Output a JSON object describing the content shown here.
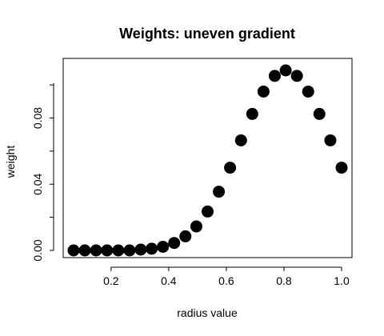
{
  "chart_data": {
    "type": "scatter",
    "title": "Weights: uneven gradient",
    "xlabel": "radius value",
    "ylabel": "weight",
    "xlim": [
      0.07,
      1.0
    ],
    "ylim": [
      0,
      0.1088
    ],
    "xticks": [
      0.2,
      0.4,
      0.6,
      0.8,
      1.0
    ],
    "xtick_labels": [
      "0.2",
      "0.4",
      "0.6",
      "0.8",
      "1.0"
    ],
    "yticks": [
      0.0,
      0.04,
      0.08
    ],
    "ytick_labels": [
      "0.00",
      "0.04",
      "0.08"
    ],
    "grid": false,
    "marker_color": "#000000",
    "x": [
      0.07,
      0.109,
      0.148,
      0.186,
      0.225,
      0.264,
      0.303,
      0.341,
      0.38,
      0.419,
      0.458,
      0.496,
      0.535,
      0.574,
      0.613,
      0.651,
      0.69,
      0.729,
      0.768,
      0.806,
      0.845,
      0.884,
      0.923,
      0.961,
      1.0
    ],
    "y": [
      0.0,
      0.0,
      0.0,
      0.0,
      0.0,
      0.0,
      0.0005,
      0.001,
      0.0022,
      0.0045,
      0.0085,
      0.0145,
      0.0235,
      0.0355,
      0.05,
      0.0665,
      0.0825,
      0.096,
      0.1055,
      0.1088,
      0.1055,
      0.096,
      0.0825,
      0.0665,
      0.05
    ]
  }
}
